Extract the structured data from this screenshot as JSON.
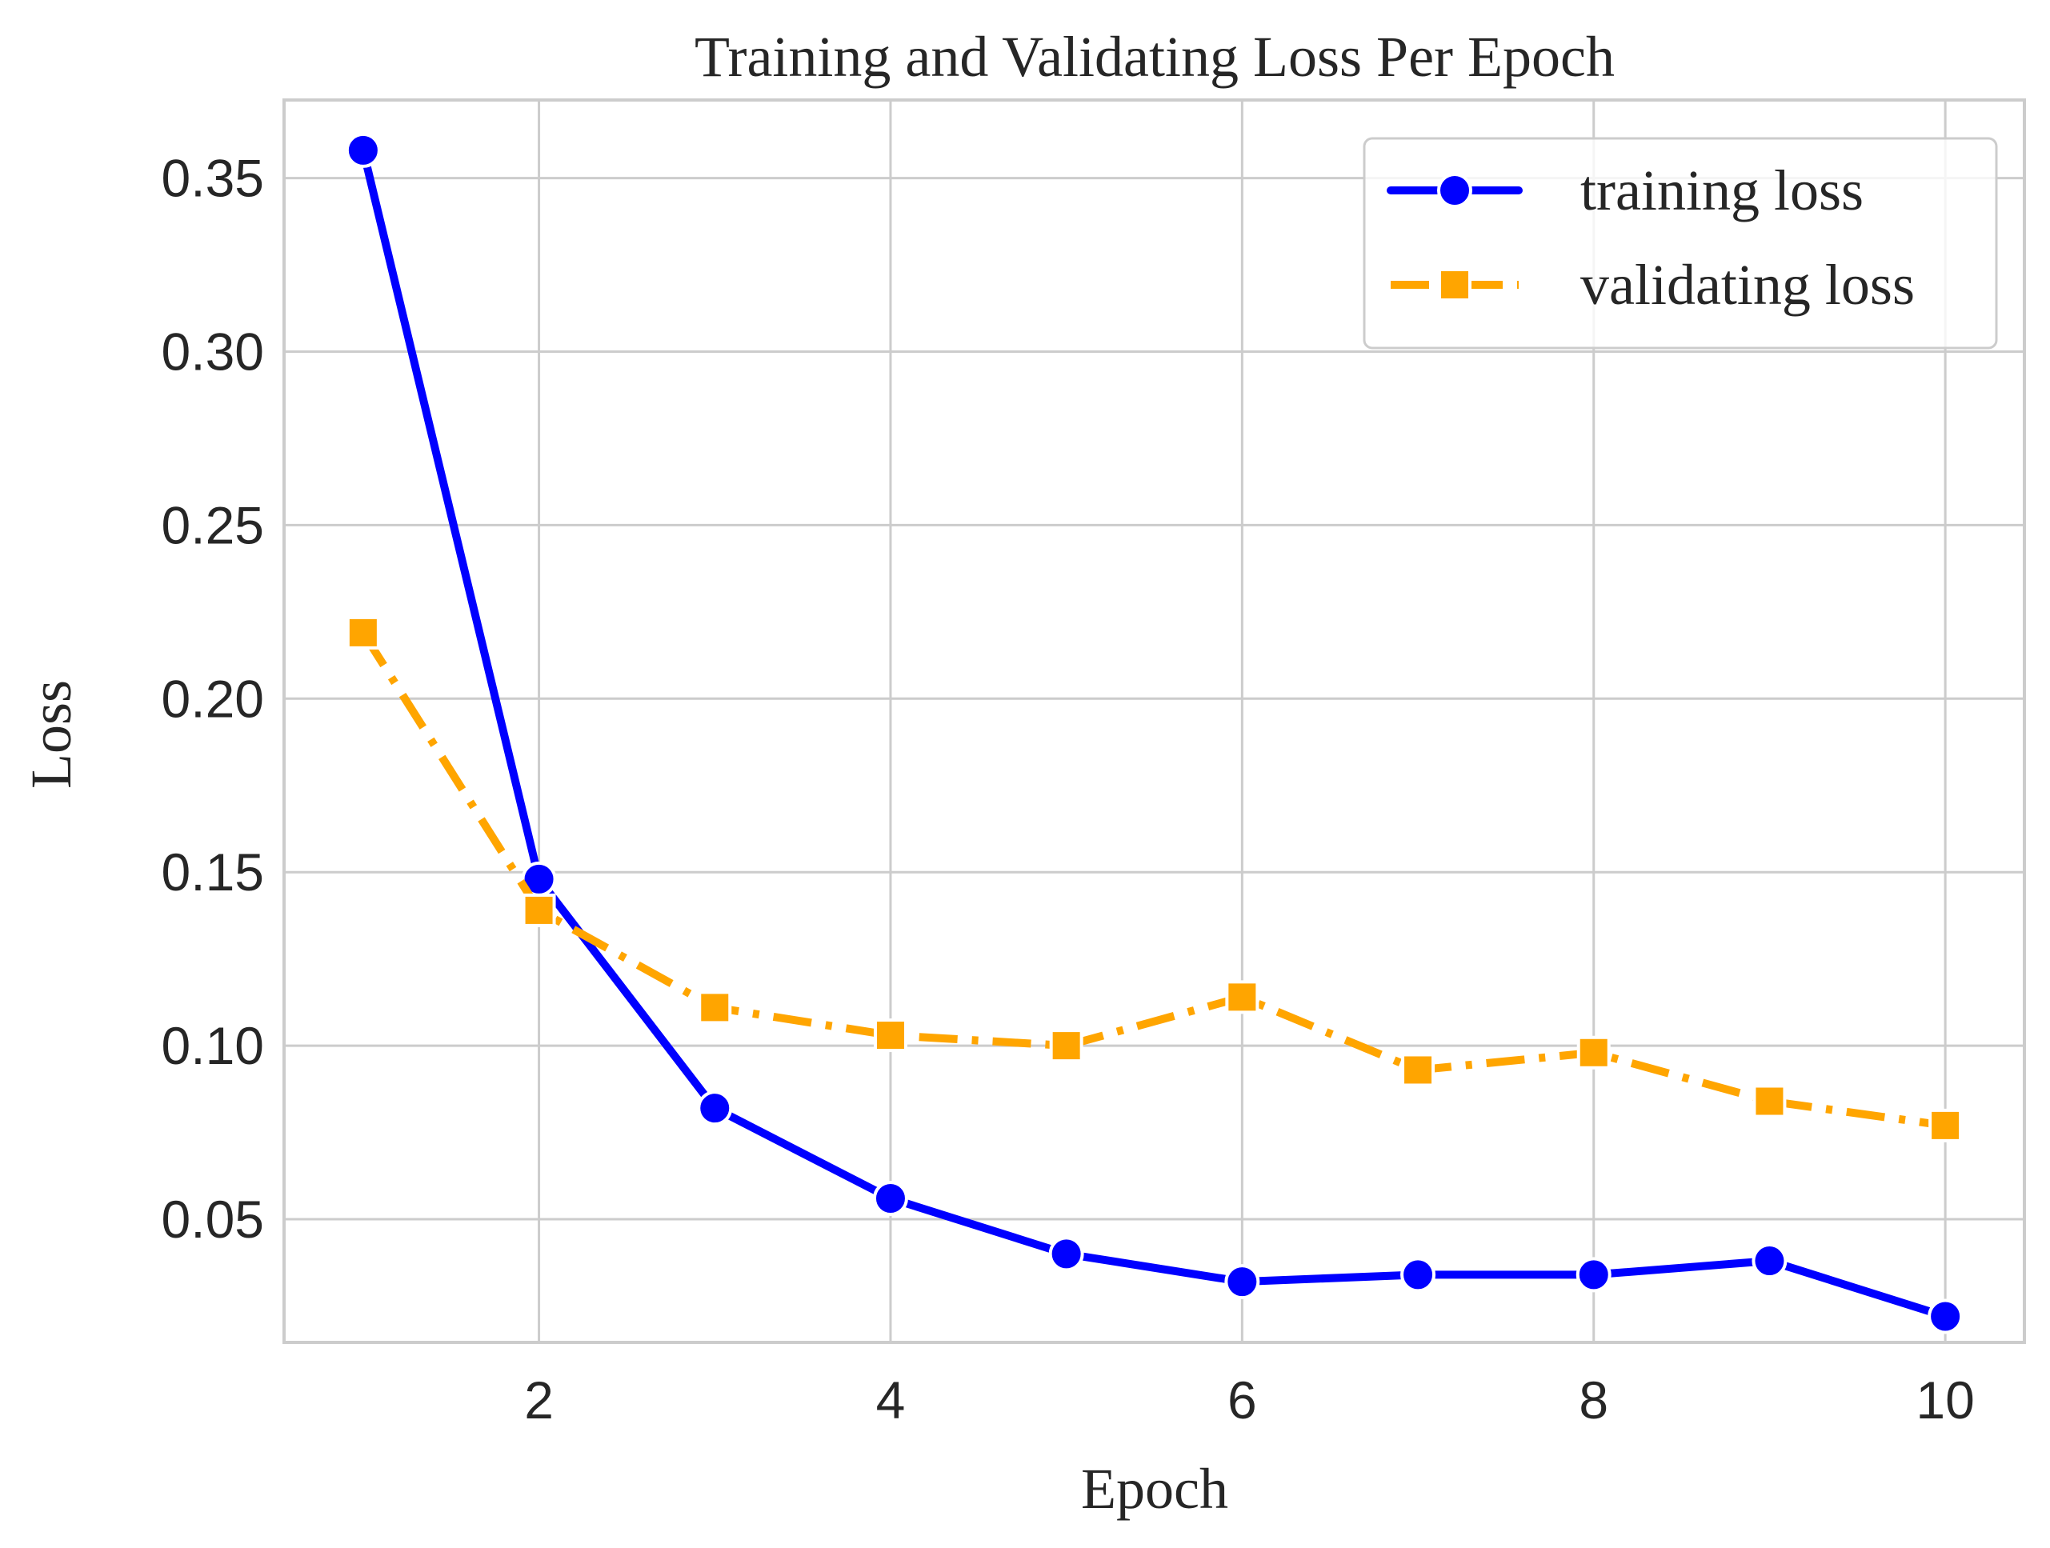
{
  "chart_data": {
    "type": "line",
    "title": "Training and Validating Loss Per Epoch",
    "xlabel": "Epoch",
    "ylabel": "Loss",
    "x": [
      1,
      2,
      3,
      4,
      5,
      6,
      7,
      8,
      9,
      10
    ],
    "xlim": [
      0.55,
      10.45
    ],
    "ylim": [
      0.0145,
      0.3725
    ],
    "xticks": [
      2,
      4,
      6,
      8,
      10
    ],
    "xtick_labels": [
      "2",
      "4",
      "6",
      "8",
      "10"
    ],
    "yticks": [
      0.05,
      0.1,
      0.15,
      0.2,
      0.25,
      0.3,
      0.35
    ],
    "ytick_labels": [
      "0.05",
      "0.10",
      "0.15",
      "0.20",
      "0.25",
      "0.30",
      "0.35"
    ],
    "grid": true,
    "legend_position": "top-right",
    "series": [
      {
        "name": "training loss",
        "values": [
          0.358,
          0.148,
          0.082,
          0.056,
          0.04,
          0.032,
          0.034,
          0.034,
          0.038,
          0.022
        ],
        "color": "#0000ff",
        "line_style": "solid",
        "marker": "circle"
      },
      {
        "name": "validating loss",
        "values": [
          0.219,
          0.139,
          0.111,
          0.103,
          0.1,
          0.114,
          0.093,
          0.098,
          0.084,
          0.077
        ],
        "color": "#ffa500",
        "line_style": "dashdot",
        "marker": "square"
      }
    ]
  },
  "colors": {
    "grid": "#cccccc",
    "spine": "#cccccc",
    "text": "#262626",
    "background": "#ffffff"
  }
}
